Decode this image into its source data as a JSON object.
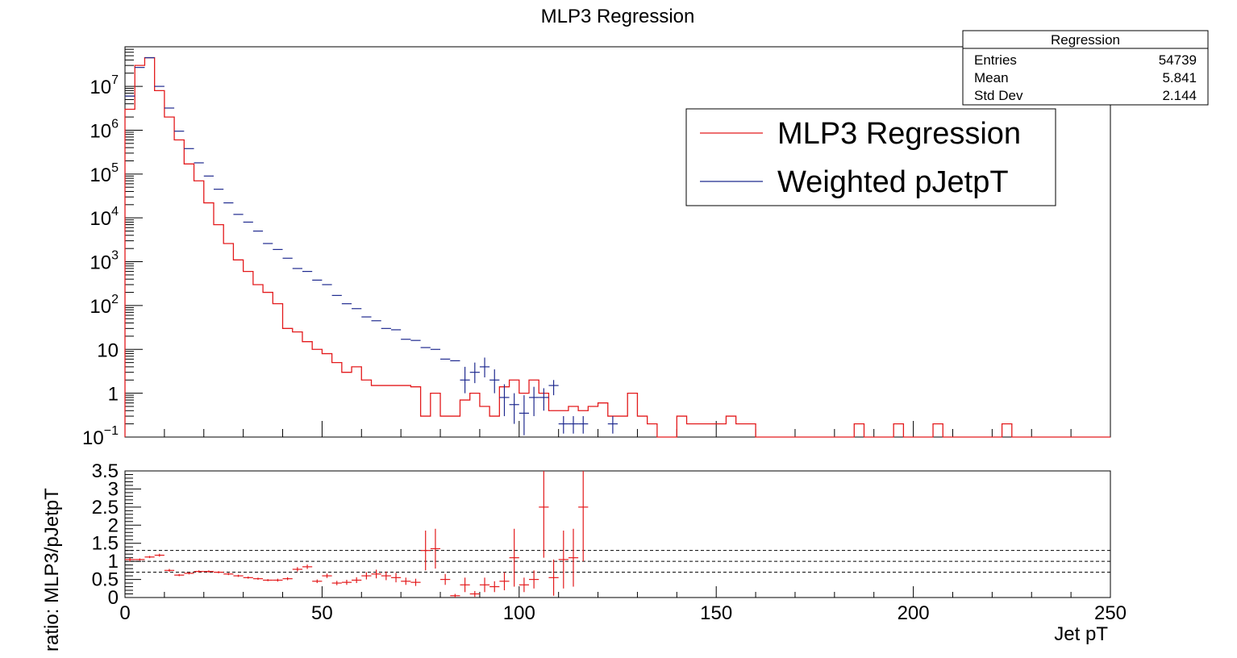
{
  "title": "MLP3 Regression",
  "stats": {
    "title": "Regression",
    "rows": [
      {
        "label": "Entries",
        "value": "54739"
      },
      {
        "label": "Mean",
        "value": "5.841"
      },
      {
        "label": "Std Dev",
        "value": "2.144"
      }
    ]
  },
  "legend": [
    {
      "label": "MLP3 Regression",
      "color": "#e31a1c"
    },
    {
      "label": "Weighted pJetpT",
      "color": "#1f2a8f"
    }
  ],
  "colors": {
    "mlp": "#e31a1c",
    "weighted": "#1f2a8f",
    "axis": "#000000"
  },
  "chart_data": [
    {
      "type": "line",
      "title": "MLP3 Regression",
      "log_y": true,
      "xlim": [
        0,
        250
      ],
      "ylim": [
        0.1,
        80000000
      ],
      "y_ticks": [
        {
          "value": 0.1,
          "base": "10",
          "exp": "−1"
        },
        {
          "value": 1,
          "base": "1",
          "exp": ""
        },
        {
          "value": 10,
          "base": "10",
          "exp": ""
        },
        {
          "value": 100,
          "base": "10",
          "exp": "2"
        },
        {
          "value": 1000,
          "base": "10",
          "exp": "3"
        },
        {
          "value": 10000,
          "base": "10",
          "exp": "4"
        },
        {
          "value": 100000,
          "base": "10",
          "exp": "5"
        },
        {
          "value": 1000000,
          "base": "10",
          "exp": "6"
        },
        {
          "value": 10000000,
          "base": "10",
          "exp": "7"
        }
      ],
      "bin_edges": [
        0,
        2.5,
        5,
        7.5,
        10,
        12.5,
        15,
        17.5,
        20,
        22.5,
        25,
        27.5,
        30,
        32.5,
        35,
        37.5,
        40,
        42.5,
        45,
        47.5,
        50,
        52.5,
        55,
        57.5,
        60,
        62.5,
        65,
        67.5,
        70,
        72.5,
        75,
        77.5,
        80,
        82.5,
        85,
        87.5,
        90,
        92.5,
        95,
        97.5,
        100,
        102.5,
        105,
        107.5,
        110,
        112.5,
        115,
        117.5,
        120,
        122.5,
        125,
        127.5,
        130,
        132.5,
        135,
        137.5,
        140,
        142.5,
        145,
        147.5,
        150,
        152.5,
        155,
        157.5,
        160,
        162.5,
        165,
        167.5,
        170,
        172.5,
        175,
        177.5,
        180,
        182.5,
        185,
        187.5,
        190,
        192.5,
        195,
        197.5,
        200,
        202.5,
        205,
        207.5,
        210,
        212.5,
        215,
        217.5,
        220,
        222.5,
        225,
        227.5,
        230,
        232.5,
        235,
        237.5,
        240,
        242.5,
        245,
        247.5,
        250
      ],
      "series": [
        {
          "name": "MLP3 Regression",
          "style": "step",
          "values": [
            3000000,
            30000000,
            45000000,
            8000000,
            2000000,
            600000,
            170000,
            70000,
            22000,
            7000,
            2600,
            1100,
            600,
            300,
            200,
            110,
            30,
            25,
            15,
            10,
            8,
            5,
            3,
            4,
            2,
            1.5,
            1.5,
            1.5,
            1.5,
            1.4,
            0.3,
            1,
            0.3,
            0.3,
            0.7,
            1,
            0.5,
            0.3,
            1.4,
            2,
            1,
            2,
            1,
            0.4,
            0.4,
            0.5,
            0.4,
            0.5,
            0.6,
            0.3,
            0.3,
            1,
            0.3,
            0.2,
            0.1,
            0.1,
            0.3,
            0.2,
            0.2,
            0.2,
            0.2,
            0.3,
            0.2,
            0.2,
            0.1,
            0.1,
            0.1,
            0.1,
            0.1,
            0.1,
            0.1,
            0.1,
            0.1,
            0.1,
            0.2,
            0.1,
            0.1,
            0.1,
            0.2,
            0.1,
            0.1,
            0.1,
            0.2,
            0.1,
            0.1,
            0.1,
            0.1,
            0.1,
            0.1,
            0.2,
            0.1,
            0.1,
            0.1,
            0.1,
            0.1,
            0.1,
            0.1,
            0.1,
            0.1,
            0.1,
            0.1
          ]
        },
        {
          "name": "Weighted pJetpT",
          "style": "points",
          "points": [
            {
              "x": 1.25,
              "y": 6000000
            },
            {
              "x": 3.75,
              "y": 27000000
            },
            {
              "x": 6.25,
              "y": 45000000
            },
            {
              "x": 8.75,
              "y": 10000000
            },
            {
              "x": 11.25,
              "y": 3200000
            },
            {
              "x": 13.75,
              "y": 950000
            },
            {
              "x": 16.25,
              "y": 380000
            },
            {
              "x": 18.75,
              "y": 180000
            },
            {
              "x": 21.25,
              "y": 90000
            },
            {
              "x": 23.75,
              "y": 45000
            },
            {
              "x": 26.25,
              "y": 22000
            },
            {
              "x": 28.75,
              "y": 12000
            },
            {
              "x": 31.25,
              "y": 8000
            },
            {
              "x": 33.75,
              "y": 5000
            },
            {
              "x": 36.25,
              "y": 2600
            },
            {
              "x": 38.75,
              "y": 1900
            },
            {
              "x": 41.25,
              "y": 1200
            },
            {
              "x": 43.75,
              "y": 700
            },
            {
              "x": 46.25,
              "y": 600
            },
            {
              "x": 48.75,
              "y": 380
            },
            {
              "x": 51.25,
              "y": 300
            },
            {
              "x": 53.75,
              "y": 170
            },
            {
              "x": 56.25,
              "y": 110
            },
            {
              "x": 58.75,
              "y": 85
            },
            {
              "x": 61.25,
              "y": 55
            },
            {
              "x": 63.75,
              "y": 45
            },
            {
              "x": 66.25,
              "y": 30
            },
            {
              "x": 68.75,
              "y": 28
            },
            {
              "x": 71.25,
              "y": 17
            },
            {
              "x": 73.75,
              "y": 16
            },
            {
              "x": 76.25,
              "y": 11
            },
            {
              "x": 78.75,
              "y": 10
            },
            {
              "x": 81.25,
              "y": 6
            },
            {
              "x": 83.75,
              "y": 5.5
            },
            {
              "x": 86.25,
              "y": 2,
              "err_hi": 4,
              "err_lo": 1
            },
            {
              "x": 88.75,
              "y": 3,
              "err_hi": 5,
              "err_lo": 1.7
            },
            {
              "x": 91.25,
              "y": 4,
              "err_hi": 6.5,
              "err_lo": 2.3
            },
            {
              "x": 93.75,
              "y": 2,
              "err_hi": 3.5,
              "err_lo": 1
            },
            {
              "x": 96.25,
              "y": 0.8,
              "err_hi": 1.6,
              "err_lo": 0.3
            },
            {
              "x": 98.75,
              "y": 0.55,
              "err_hi": 1,
              "err_lo": 0.2
            },
            {
              "x": 101.25,
              "y": 0.35,
              "err_hi": 0.9,
              "err_lo": 0.11
            },
            {
              "x": 103.75,
              "y": 0.8,
              "err_hi": 1.4,
              "err_lo": 0.3
            },
            {
              "x": 106.25,
              "y": 0.8,
              "err_hi": 1.3,
              "err_lo": 0.4
            },
            {
              "x": 108.75,
              "y": 1.5,
              "err_hi": 2,
              "err_lo": 0.9
            },
            {
              "x": 111.25,
              "y": 0.2,
              "err_hi": 0.3,
              "err_lo": 0.12
            },
            {
              "x": 113.75,
              "y": 0.2,
              "err_hi": 0.3,
              "err_lo": 0.12
            },
            {
              "x": 116.25,
              "y": 0.2,
              "err_hi": 0.3,
              "err_lo": 0.12
            },
            {
              "x": 123.75,
              "y": 0.2,
              "err_hi": 0.3,
              "err_lo": 0.12
            }
          ]
        }
      ]
    },
    {
      "type": "scatter",
      "xlabel": "Jet pT",
      "ylabel": "ratio: MLP3/pJetpT",
      "xlim": [
        0,
        250
      ],
      "ylim": [
        0,
        3.5
      ],
      "x_ticks": [
        0,
        50,
        100,
        150,
        200,
        250
      ],
      "x_tick_labels": [
        "0",
        "50",
        "100",
        "150",
        "200",
        "250"
      ],
      "y_ticks": [
        0,
        0.5,
        1,
        1.5,
        2,
        2.5,
        3,
        3.5
      ],
      "y_tick_labels": [
        "0",
        "0.5",
        "1",
        "1.5",
        "2",
        "2.5",
        "3",
        "3.5"
      ],
      "reference_lines": [
        0.7,
        1,
        1.3
      ],
      "series": [
        {
          "name": "",
          "points": [
            {
              "x": 1.25,
              "y": 1.05,
              "e": 0.05
            },
            {
              "x": 3.75,
              "y": 1.05,
              "e": 0.03
            },
            {
              "x": 6.25,
              "y": 1.12,
              "e": 0.03
            },
            {
              "x": 8.75,
              "y": 1.17,
              "e": 0.04
            },
            {
              "x": 11.25,
              "y": 0.75,
              "e": 0.04
            },
            {
              "x": 13.75,
              "y": 0.62,
              "e": 0.03
            },
            {
              "x": 16.25,
              "y": 0.67,
              "e": 0.03
            },
            {
              "x": 18.75,
              "y": 0.72,
              "e": 0.03
            },
            {
              "x": 21.25,
              "y": 0.72,
              "e": 0.03
            },
            {
              "x": 23.75,
              "y": 0.7,
              "e": 0.03
            },
            {
              "x": 26.25,
              "y": 0.65,
              "e": 0.03
            },
            {
              "x": 28.75,
              "y": 0.6,
              "e": 0.03
            },
            {
              "x": 31.25,
              "y": 0.55,
              "e": 0.03
            },
            {
              "x": 33.75,
              "y": 0.52,
              "e": 0.03
            },
            {
              "x": 36.25,
              "y": 0.48,
              "e": 0.03
            },
            {
              "x": 38.75,
              "y": 0.48,
              "e": 0.04
            },
            {
              "x": 41.25,
              "y": 0.52,
              "e": 0.04
            },
            {
              "x": 43.75,
              "y": 0.78,
              "e": 0.06
            },
            {
              "x": 46.25,
              "y": 0.85,
              "e": 0.06
            },
            {
              "x": 48.75,
              "y": 0.45,
              "e": 0.05
            },
            {
              "x": 51.25,
              "y": 0.6,
              "e": 0.06
            },
            {
              "x": 53.75,
              "y": 0.4,
              "e": 0.06
            },
            {
              "x": 56.25,
              "y": 0.42,
              "e": 0.07
            },
            {
              "x": 58.75,
              "y": 0.48,
              "e": 0.08
            },
            {
              "x": 61.25,
              "y": 0.6,
              "e": 0.1
            },
            {
              "x": 63.75,
              "y": 0.65,
              "e": 0.12
            },
            {
              "x": 66.25,
              "y": 0.6,
              "e": 0.12
            },
            {
              "x": 68.75,
              "y": 0.55,
              "e": 0.13
            },
            {
              "x": 71.25,
              "y": 0.45,
              "e": 0.1
            },
            {
              "x": 73.75,
              "y": 0.42,
              "e": 0.1
            },
            {
              "x": 76.25,
              "y": 1.3,
              "e": 0.55
            },
            {
              "x": 78.75,
              "y": 1.35,
              "e": 0.55
            },
            {
              "x": 81.25,
              "y": 0.5,
              "e": 0.15
            },
            {
              "x": 83.75,
              "y": 0.05,
              "e": 0.05
            },
            {
              "x": 86.25,
              "y": 0.35,
              "e": 0.2
            },
            {
              "x": 88.75,
              "y": 0.1,
              "e": 0.08
            },
            {
              "x": 91.25,
              "y": 0.35,
              "e": 0.2
            },
            {
              "x": 93.75,
              "y": 0.3,
              "e": 0.15
            },
            {
              "x": 96.25,
              "y": 0.45,
              "e": 0.25
            },
            {
              "x": 98.75,
              "y": 1.1,
              "e": 0.8
            },
            {
              "x": 101.25,
              "y": 0.35,
              "e": 0.2
            },
            {
              "x": 103.75,
              "y": 0.5,
              "e": 0.25
            },
            {
              "x": 106.25,
              "y": 2.5,
              "e": 1.4
            },
            {
              "x": 108.75,
              "y": 0.55,
              "e": 0.5
            },
            {
              "x": 111.25,
              "y": 1.05,
              "e": 0.8
            },
            {
              "x": 113.75,
              "y": 1.1,
              "e": 0.8
            },
            {
              "x": 116.25,
              "y": 2.5,
              "e": 1.5
            }
          ]
        }
      ]
    }
  ]
}
